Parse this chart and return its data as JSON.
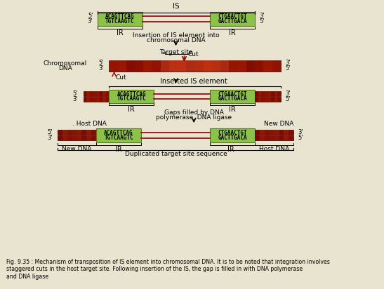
{
  "fig_caption": "Fig. 9.35 : Mechanism of transposition of IS element into chromosomal DNA. It is to be noted that integration involves\nstaggered cuts in the host target site. Following insertion of the IS, the gap is filled in with DNA polymerase\nand DNA ligase",
  "left_seq_line1": "ACAGTTCAG",
  "left_seq_line2": "TGTCAAGTC",
  "right_seq_line1": "CTGAACTGT",
  "right_seq_line2": "GACTTGACA",
  "green_color": "#8BC34A",
  "dark_red": "#8B0000",
  "background": "#e8e4d0",
  "dna_main": "#7a0800",
  "dna_highlight": "#FF4400",
  "dna_bright": "#FF6633"
}
